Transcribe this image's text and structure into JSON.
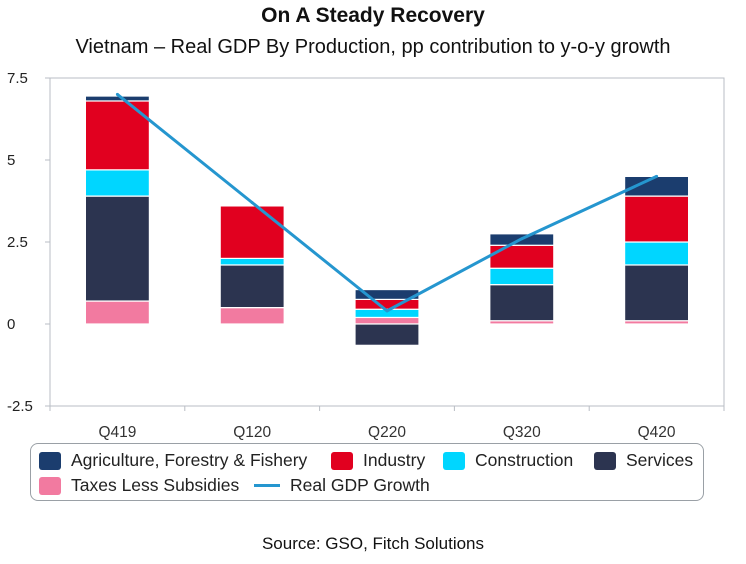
{
  "title": "On A Steady Recovery",
  "subtitle": "Vietnam – Real GDP By Production, pp contribution to y-o-y growth",
  "source": "Source: GSO, Fitch Solutions",
  "colors": {
    "agriculture": "#1b3d6e",
    "industry": "#e1001f",
    "construction": "#00d6ff",
    "services": "#2c3450",
    "taxes": "#f27aa0",
    "line": "#2596cf"
  },
  "legend": {
    "agriculture": "Agriculture, Forestry & Fishery",
    "industry": "Industry",
    "construction": "Construction",
    "services": "Services",
    "taxes": "Taxes Less Subsidies",
    "line": "Real GDP Growth"
  },
  "chart_data": {
    "type": "bar",
    "stacked": true,
    "title": "On A Steady Recovery",
    "subtitle": "Vietnam – Real GDP By Production, pp contribution to y-o-y growth",
    "categories": [
      "Q419",
      "Q120",
      "Q220",
      "Q320",
      "Q420"
    ],
    "ylim": [
      -2.5,
      7.5
    ],
    "yticks": [
      "7.5",
      "5",
      "2.5",
      "0",
      "-2.5"
    ],
    "yticks_values": [
      7.5,
      5,
      2.5,
      0,
      -2.5
    ],
    "series": [
      {
        "name": "Taxes Less Subsidies",
        "key": "taxes",
        "values": [
          0.7,
          0.5,
          0.2,
          0.1,
          0.1
        ]
      },
      {
        "name": "Services",
        "key": "services",
        "values": [
          3.2,
          1.3,
          -0.65,
          1.1,
          1.7
        ]
      },
      {
        "name": "Construction",
        "key": "construction",
        "values": [
          0.8,
          0.2,
          0.25,
          0.5,
          0.7
        ]
      },
      {
        "name": "Industry",
        "key": "industry",
        "values": [
          2.1,
          1.6,
          0.3,
          0.7,
          1.4
        ]
      },
      {
        "name": "Agriculture, Forestry & Fishery",
        "key": "agriculture",
        "values": [
          0.15,
          0.0,
          0.3,
          0.35,
          0.6
        ]
      }
    ],
    "line": {
      "name": "Real GDP Growth",
      "values": [
        7.0,
        3.7,
        0.4,
        2.6,
        4.5
      ]
    },
    "legend_position": "bottom",
    "grid": false
  }
}
